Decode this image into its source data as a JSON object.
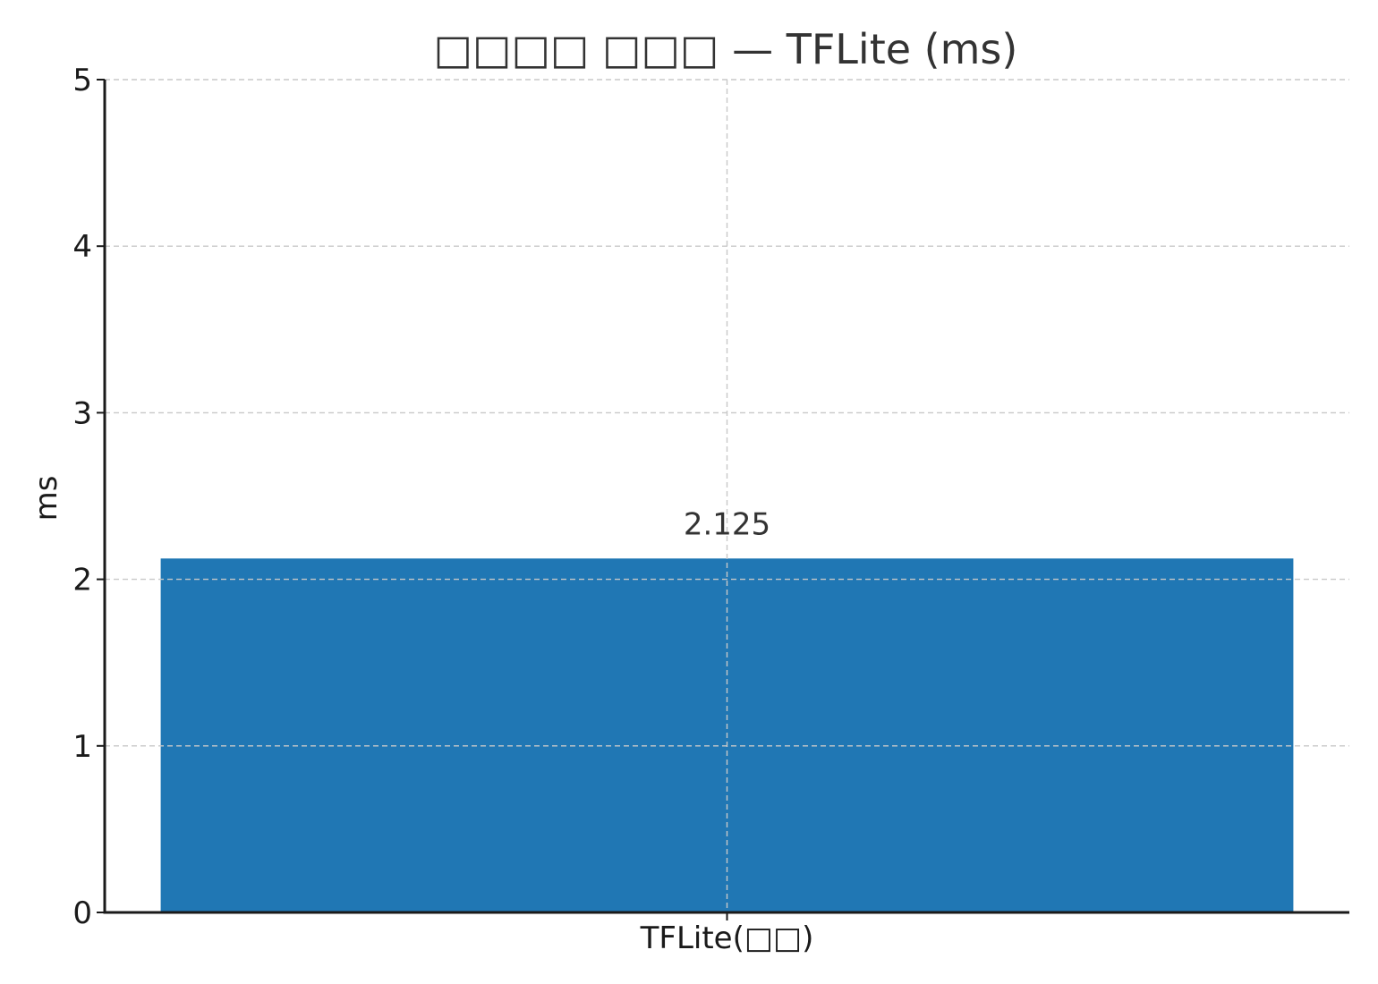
{
  "chart_data": {
    "type": "bar",
    "title": "𝐒𝐟𝐥𝐜𝐲 𝐛𝐥𝐛 — TFLite (ms)",
    "title_display": "□□□□ □□□ — TFLite (ms)",
    "categories": [
      "TFLite(□□)"
    ],
    "values": [
      2.125
    ],
    "data_labels": [
      "2.125"
    ],
    "xlabel": "",
    "ylabel": "ms",
    "ylim": [
      0,
      5
    ],
    "yticks": [
      0,
      1,
      2,
      3,
      4,
      5
    ],
    "ytick_labels": [
      "0",
      "1",
      "2",
      "3",
      "4",
      "5"
    ],
    "grid": true,
    "grid_style": "dashed",
    "bar_color": "#2077b4",
    "text_color": "#333333",
    "axis_color": "#1a1a1a",
    "grid_color": "#c8c8c8"
  }
}
